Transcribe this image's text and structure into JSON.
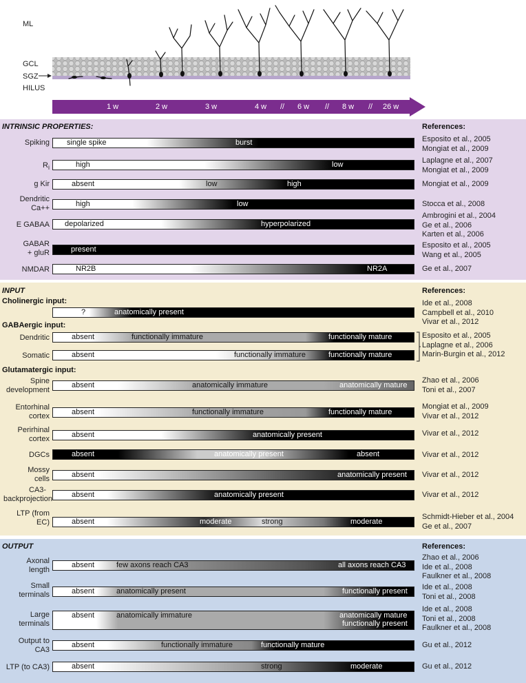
{
  "figure": {
    "layer_labels": [
      "ML",
      "GCL",
      "SGZ",
      "HILUS"
    ],
    "timeline": [
      "1 w",
      "2 w",
      "3 w",
      "4 w",
      "//",
      "6 w",
      "//",
      "8 w",
      "//",
      "26 w"
    ],
    "colors": {
      "timeline": "#7b2d8e",
      "intrinsic_bg": "#e3d5ea",
      "input_bg": "#f4ecd1",
      "output_bg": "#c8d6ea"
    }
  },
  "intrinsic": {
    "title": "INTRINSIC PROPERTIES:",
    "ref_header": "References:",
    "rows": [
      {
        "label": [
          "Spiking"
        ],
        "texts": [
          "single spike",
          "burst"
        ],
        "refs": [
          "Esposito et al., 2005",
          "Mongiat et al., 2009"
        ]
      },
      {
        "label": [
          "Ri"
        ],
        "texts": [
          "high",
          "low"
        ],
        "refs": [
          "Laplagne et al., 2007",
          "Mongiat et al., 2009"
        ]
      },
      {
        "label": [
          "g Kir"
        ],
        "texts": [
          "absent",
          "low",
          "high"
        ],
        "refs": [
          "Mongiat et al., 2009"
        ]
      },
      {
        "label": [
          "Dendritic",
          "Ca++"
        ],
        "texts": [
          "high",
          "low"
        ],
        "refs": [
          "Stocca et al., 2008"
        ]
      },
      {
        "label": [
          "E GABAA"
        ],
        "texts": [
          "depolarized",
          "hyperpolarized"
        ],
        "refs": [
          "Ambrogini et al., 2004",
          "Ge et al., 2006",
          "Karten et al., 2006"
        ]
      },
      {
        "label": [
          "GABAR",
          "+ gluR"
        ],
        "texts": [
          "present"
        ],
        "refs": [
          "Esposito et al., 2005",
          "Wang et al., 2005"
        ]
      },
      {
        "label": [
          "NMDAR"
        ],
        "texts": [
          "NR2B",
          "NR2A"
        ],
        "refs": [
          "Ge et al., 2007"
        ]
      }
    ]
  },
  "input": {
    "title": "INPUT",
    "ref_header": "References:",
    "groups": [
      "Cholinergic input:",
      "GABAergic input:",
      "Glutamatergic input:"
    ],
    "rows": [
      {
        "label": [],
        "texts": [
          "?",
          "anatomically present"
        ],
        "refs": [
          "Ide et al., 2008",
          "Campbell et al., 2010",
          "Vivar et al., 2012"
        ]
      },
      {
        "label": [
          "Dendritic"
        ],
        "texts": [
          "absent",
          "functionally immature",
          "functionally mature"
        ],
        "refs": [
          "Esposito et al., 2005",
          "Laplagne et al., 2006",
          "Marin-Burgin et al., 2012"
        ]
      },
      {
        "label": [
          "Somatic"
        ],
        "texts": [
          "absent",
          "functionally immature",
          "functionally mature"
        ],
        "refs": []
      },
      {
        "label": [
          "Spine",
          "development"
        ],
        "texts": [
          "absent",
          "anatomically immature",
          "anatomically mature"
        ],
        "refs": [
          "Zhao et al., 2006",
          "Toni et al., 2007"
        ]
      },
      {
        "label": [
          "Entorhinal",
          "cortex"
        ],
        "texts": [
          "absent",
          "functionally immature",
          "functionally mature"
        ],
        "refs": [
          "Mongiat et al., 2009",
          "Vivar et al., 2012"
        ]
      },
      {
        "label": [
          "Perirhinal",
          "cortex"
        ],
        "texts": [
          "absent",
          "anatomically present"
        ],
        "refs": [
          "Vivar et al., 2012"
        ]
      },
      {
        "label": [
          "DGCs"
        ],
        "texts": [
          "absent",
          "anatomically present",
          "absent"
        ],
        "refs": [
          "Vivar et al., 2012"
        ]
      },
      {
        "label": [
          "Mossy",
          "cells"
        ],
        "texts": [
          "absent",
          "anatomically present"
        ],
        "refs": [
          "Vivar et al., 2012"
        ]
      },
      {
        "label": [
          "CA3-",
          "backprojection"
        ],
        "texts": [
          "absent",
          "anatomically present"
        ],
        "refs": [
          "Vivar et al., 2012"
        ]
      },
      {
        "label": [
          "LTP (from",
          "EC)"
        ],
        "texts": [
          "absent",
          "moderate",
          "strong",
          "moderate"
        ],
        "refs": [
          "Schmidt-Hieber et al., 2004",
          "Ge et al., 2007"
        ]
      }
    ]
  },
  "output": {
    "title": "OUTPUT",
    "ref_header": "References:",
    "rows": [
      {
        "label": [
          "Axonal",
          "length"
        ],
        "texts": [
          "absent",
          "few axons reach CA3",
          "all axons reach CA3"
        ],
        "refs": [
          "Zhao et al., 2006",
          "Ide et al., 2008",
          "Faulkner et al., 2008"
        ]
      },
      {
        "label": [
          "Small",
          "terminals"
        ],
        "texts": [
          "absent",
          "anatomically present",
          "functionally present"
        ],
        "refs": [
          "Ide et al., 2008",
          "Toni et al., 2008"
        ]
      },
      {
        "label": [
          "Large",
          "terminals"
        ],
        "texts": [
          "absent",
          "anatomically immature",
          "anatomically mature",
          "functionally present"
        ],
        "refs": [
          "Ide et al., 2008",
          "Toni et al., 2008",
          "Faulkner et al., 2008"
        ]
      },
      {
        "label": [
          "Output to",
          "CA3"
        ],
        "texts": [
          "absent",
          "functionally immature",
          "functionally mature"
        ],
        "refs": [
          "Gu et al., 2012"
        ]
      },
      {
        "label": [
          "LTP (to CA3)"
        ],
        "texts": [
          "absent",
          "strong",
          "moderate"
        ],
        "refs": [
          "Gu et al., 2012"
        ]
      }
    ]
  }
}
